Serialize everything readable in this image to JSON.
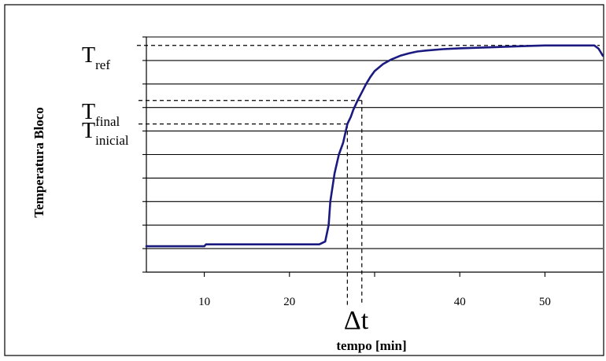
{
  "colors": {
    "curve": "#1a1a80",
    "grid": "#000000",
    "frame": "#000000",
    "background": "#ffffff"
  },
  "chart_data": {
    "type": "line",
    "title": "",
    "xlabel": "tempo [min]",
    "ylabel": "Temperatura Bloco",
    "xlim": [
      3.2,
      56.8
    ],
    "ylim": [
      0,
      10
    ],
    "x_ticks": [
      10,
      20,
      30,
      40,
      50
    ],
    "x_tick_labels": [
      "10",
      "20",
      "",
      "40",
      "50"
    ],
    "y_ticks": [
      0,
      1,
      2,
      3,
      4,
      5,
      6,
      7,
      8,
      9,
      10
    ],
    "y_tick_labels": [],
    "grid": "horizontal",
    "series": [
      {
        "points": [
          [
            3.2,
            1.1
          ],
          [
            10.0,
            1.1
          ],
          [
            10.2,
            1.18
          ],
          [
            20.0,
            1.18
          ],
          [
            23.5,
            1.18
          ],
          [
            24.2,
            1.3
          ],
          [
            24.6,
            2.0
          ],
          [
            24.8,
            3.0
          ],
          [
            25.3,
            4.2
          ],
          [
            25.8,
            5.0
          ],
          [
            26.3,
            5.5
          ],
          [
            26.8,
            6.3
          ],
          [
            27.2,
            6.6
          ],
          [
            27.5,
            6.9
          ],
          [
            28.0,
            7.3
          ],
          [
            28.5,
            7.65
          ],
          [
            29.0,
            8.0
          ],
          [
            29.5,
            8.3
          ],
          [
            30.0,
            8.55
          ],
          [
            31.0,
            8.85
          ],
          [
            32.0,
            9.05
          ],
          [
            33.0,
            9.2
          ],
          [
            34.0,
            9.3
          ],
          [
            35.0,
            9.38
          ],
          [
            36.0,
            9.42
          ],
          [
            38.0,
            9.48
          ],
          [
            40.0,
            9.52
          ],
          [
            45.0,
            9.58
          ],
          [
            48.0,
            9.62
          ],
          [
            50.0,
            9.64
          ],
          [
            55.8,
            9.64
          ],
          [
            56.3,
            9.5
          ],
          [
            56.8,
            9.2
          ]
        ]
      }
    ],
    "annotations": [
      {
        "main": "T",
        "sub": "ref",
        "y": 9.64
      },
      {
        "main": "T",
        "sub": "final",
        "y": 7.3
      },
      {
        "main": "T",
        "sub": "inicial",
        "y": 6.3
      },
      {
        "label": "Δt",
        "x_start": 26.8,
        "x_end": 28.5
      }
    ]
  }
}
